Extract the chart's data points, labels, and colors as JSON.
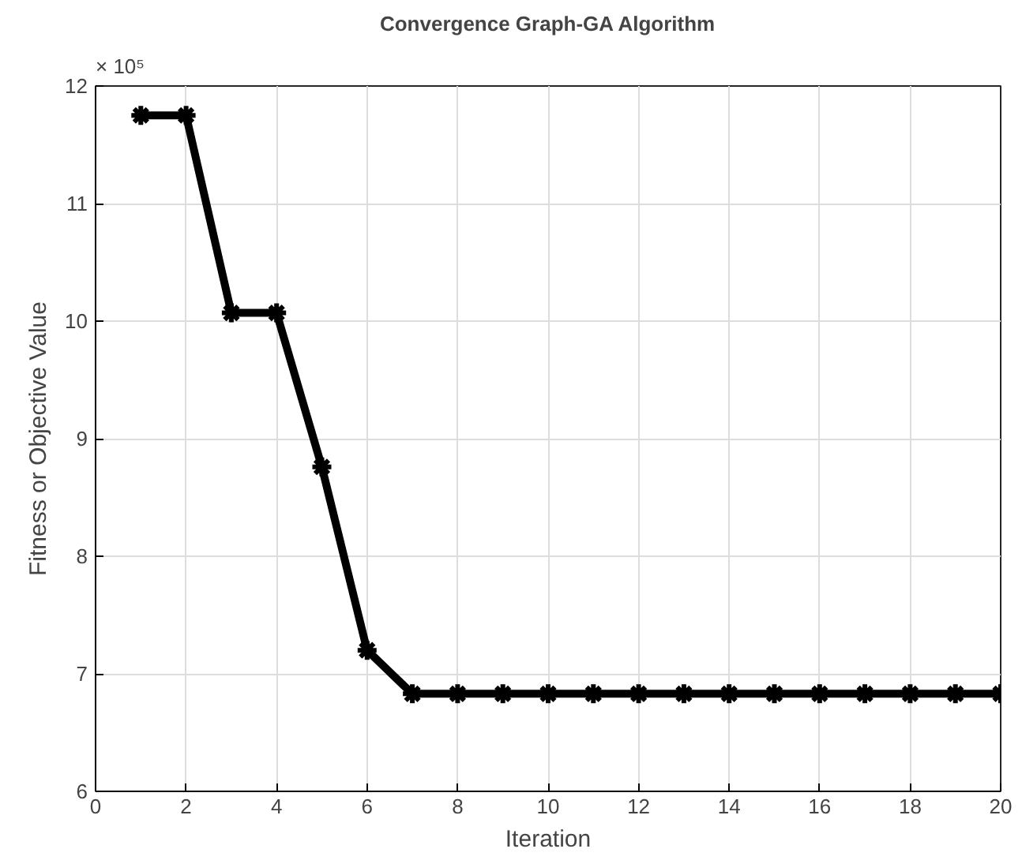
{
  "chart_data": {
    "type": "line",
    "title": "Convergence Graph-GA Algorithm",
    "xlabel": "Iteration",
    "ylabel": "Fitness or Objective Value",
    "annotations": [
      "× 10⁵"
    ],
    "x": [
      1,
      2,
      3,
      4,
      5,
      6,
      7,
      8,
      9,
      10,
      11,
      12,
      13,
      14,
      15,
      16,
      17,
      18,
      19,
      20
    ],
    "series": [
      {
        "color": "#000000",
        "values": [
          11.75,
          11.75,
          10.07,
          10.07,
          8.76,
          7.2,
          6.83,
          6.83,
          6.83,
          6.83,
          6.83,
          6.83,
          6.83,
          6.83,
          6.83,
          6.83,
          6.83,
          6.83,
          6.83,
          6.83
        ]
      }
    ],
    "xlim": [
      0,
      20
    ],
    "xticks": [
      0,
      2,
      4,
      6,
      8,
      10,
      12,
      14,
      16,
      18,
      20
    ],
    "ylim": [
      6,
      12
    ],
    "yticks": [
      6,
      7,
      8,
      9,
      10,
      11,
      12
    ],
    "grid": true,
    "marker": "cross",
    "line_style": "solid"
  }
}
